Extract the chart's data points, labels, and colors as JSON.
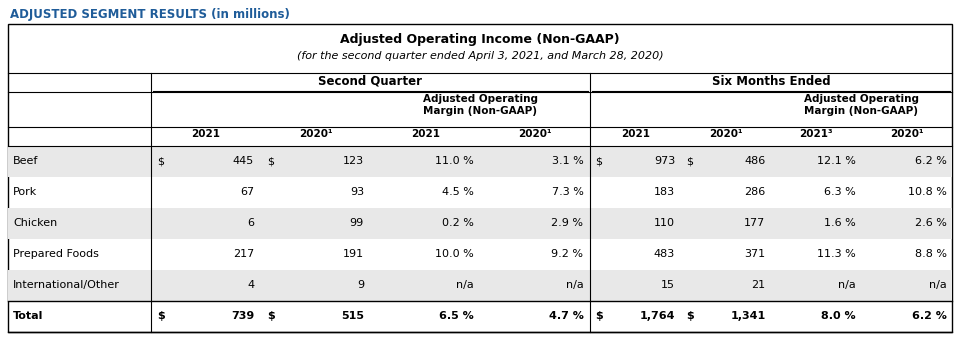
{
  "super_title": "ADJUSTED SEGMENT RESULTS (in millions)",
  "table_title_line1": "Adjusted Operating Income (Non-GAAP)",
  "table_title_line2": "(for the second quarter ended April 3, 2021, and March 28, 2020)",
  "col_group1_label": "Second Quarter",
  "col_group2_label": "Six Months Ended",
  "col_headers_sq": [
    "2021",
    "2020¹",
    "2021",
    "2020¹"
  ],
  "col_headers_six": [
    "2021",
    "2020¹",
    "2021³",
    "2020¹"
  ],
  "rows": [
    {
      "label": "Beef",
      "sq_dollar1": "$",
      "sq_2021": "445",
      "sq_dollar2": "$",
      "sq_2020": "123",
      "sq_m2021": "11.0 %",
      "sq_m2020": "3.1 %",
      "six_dollar1": "$",
      "six_2021": "973",
      "six_dollar2": "$",
      "six_2020": "486",
      "six_m2021": "12.1 %",
      "six_m2020": "6.2 %",
      "bold": false,
      "shaded": true
    },
    {
      "label": "Pork",
      "sq_dollar1": "",
      "sq_2021": "67",
      "sq_dollar2": "",
      "sq_2020": "93",
      "sq_m2021": "4.5 %",
      "sq_m2020": "7.3 %",
      "six_dollar1": "",
      "six_2021": "183",
      "six_dollar2": "",
      "six_2020": "286",
      "six_m2021": "6.3 %",
      "six_m2020": "10.8 %",
      "bold": false,
      "shaded": false
    },
    {
      "label": "Chicken",
      "sq_dollar1": "",
      "sq_2021": "6",
      "sq_dollar2": "",
      "sq_2020": "99",
      "sq_m2021": "0.2 %",
      "sq_m2020": "2.9 %",
      "six_dollar1": "",
      "six_2021": "110",
      "six_dollar2": "",
      "six_2020": "177",
      "six_m2021": "1.6 %",
      "six_m2020": "2.6 %",
      "bold": false,
      "shaded": true
    },
    {
      "label": "Prepared Foods",
      "sq_dollar1": "",
      "sq_2021": "217",
      "sq_dollar2": "",
      "sq_2020": "191",
      "sq_m2021": "10.0 %",
      "sq_m2020": "9.2 %",
      "six_dollar1": "",
      "six_2021": "483",
      "six_dollar2": "",
      "six_2020": "371",
      "six_m2021": "11.3 %",
      "six_m2020": "8.8 %",
      "bold": false,
      "shaded": false
    },
    {
      "label": "International/Other",
      "sq_dollar1": "",
      "sq_2021": "4",
      "sq_dollar2": "",
      "sq_2020": "9",
      "sq_m2021": "n/a",
      "sq_m2020": "n/a",
      "six_dollar1": "",
      "six_2021": "15",
      "six_dollar2": "",
      "six_2020": "21",
      "six_m2021": "n/a",
      "six_m2020": "n/a",
      "bold": false,
      "shaded": true
    },
    {
      "label": "Total",
      "sq_dollar1": "$",
      "sq_2021": "739",
      "sq_dollar2": "$",
      "sq_2020": "515",
      "sq_m2021": "6.5 %",
      "sq_m2020": "4.7 %",
      "six_dollar1": "$",
      "six_2021": "1,764",
      "six_dollar2": "$",
      "six_2020": "1,341",
      "six_m2021": "8.0 %",
      "six_m2020": "6.2 %",
      "bold": true,
      "shaded": false
    }
  ],
  "super_title_color": "#1F5C99",
  "shaded_bg": "#E8E8E8",
  "border_color": "#000000",
  "text_color": "#000000",
  "fig_w": 9.6,
  "fig_h": 3.42,
  "dpi": 100
}
